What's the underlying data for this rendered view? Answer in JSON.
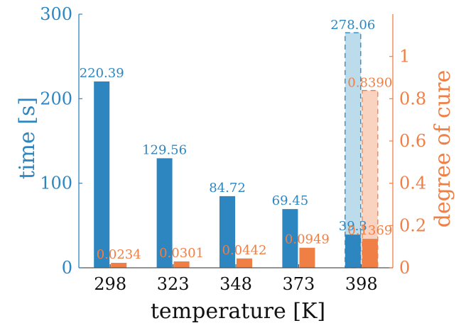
{
  "chart_data": {
    "type": "bar",
    "title": "",
    "xlabel": "temperature [K]",
    "ylabel": "time [s]",
    "y2label": "degree of cure",
    "categories": [
      "298",
      "323",
      "348",
      "373",
      "398"
    ],
    "ylim": [
      0,
      300
    ],
    "y2lim": [
      0,
      1.2
    ],
    "yticks": [
      "0",
      "100",
      "200",
      "300"
    ],
    "y2ticks": [
      "0",
      "0.2",
      "0.4",
      "0.6",
      "0.8",
      "1"
    ],
    "series": [
      {
        "axis": "left",
        "values": [
          220.39,
          129.56,
          84.72,
          69.45,
          39.3
        ],
        "labels": [
          "220.39",
          "129.56",
          "84.72",
          "69.45",
          "39.3"
        ]
      },
      {
        "axis": "right",
        "values": [
          0.0234,
          0.0301,
          0.0442,
          0.0949,
          0.1369
        ],
        "labels": [
          "0.0234",
          "0.0301",
          "0.0442",
          "0.0949",
          "0.1369"
        ]
      }
    ],
    "extra_bars": [
      {
        "category": "398",
        "axis": "left",
        "value": 278.06,
        "label": "278.06",
        "style": "dashed-light"
      },
      {
        "category": "398",
        "axis": "right",
        "value": 0.839,
        "label": "0.8390",
        "style": "dashed-light"
      }
    ],
    "colors": {
      "left": "#2e86c1",
      "left_light": "#bcdcec",
      "right": "#f07f45",
      "right_light": "#f9d2c0",
      "axis": "#555555",
      "text": "#111111"
    }
  }
}
